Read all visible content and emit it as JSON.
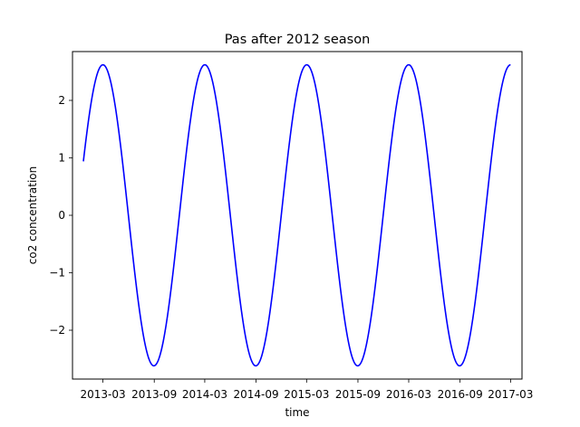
{
  "chart_data": {
    "type": "line",
    "title": "Pas after 2012 season",
    "xlabel": "time",
    "ylabel": "co2 concentration",
    "x_ticks": [
      "2013-03",
      "2013-09",
      "2014-03",
      "2014-09",
      "2015-03",
      "2015-09",
      "2016-03",
      "2016-09",
      "2017-03"
    ],
    "y_ticks": [
      -2,
      -1,
      0,
      1,
      2
    ],
    "y_tick_labels": [
      "−2",
      "−1",
      "0",
      "1",
      "2"
    ],
    "xlim": [
      "2012-11-12",
      "2017-04-11"
    ],
    "ylim": [
      -2.85,
      2.85
    ],
    "grid": false,
    "legend": "none",
    "series": [
      {
        "color": "#0000ff",
        "x_start": "2012-12-21",
        "x_end": "2017-03-01",
        "amplitude": 2.62,
        "period_days": 365.25,
        "peak_date": "2013-03-01",
        "start_value": 1.15,
        "end_value": 2.56
      }
    ]
  }
}
